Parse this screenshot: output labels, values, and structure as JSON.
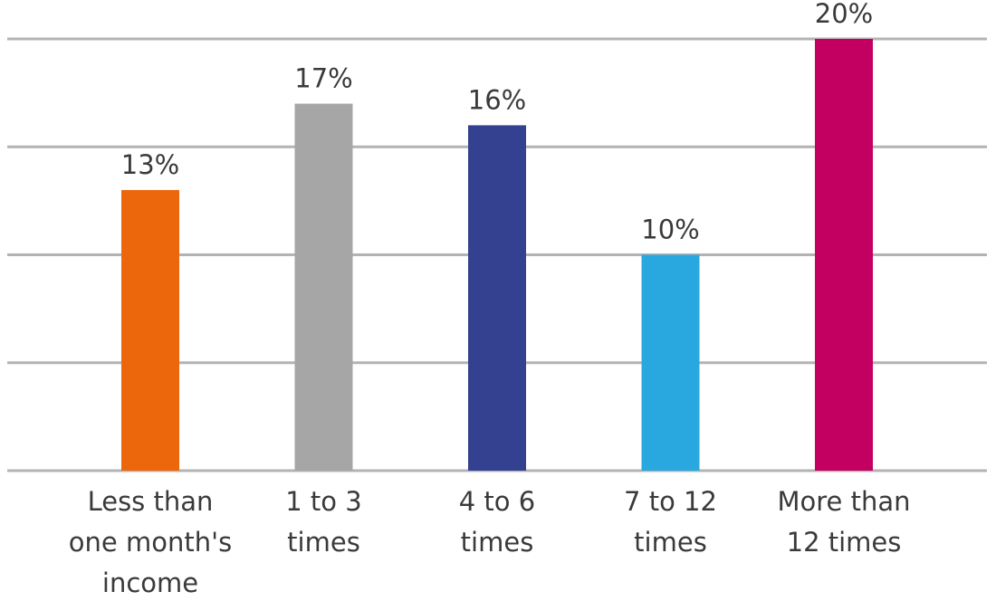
{
  "chart_data": {
    "type": "bar",
    "categories": [
      [
        "Less than",
        "one month's",
        "income"
      ],
      [
        "1 to 3",
        "times"
      ],
      [
        "4 to 6",
        "times"
      ],
      [
        "7 to 12",
        "times"
      ],
      [
        "More than",
        "12 times"
      ]
    ],
    "values": [
      13,
      17,
      16,
      10,
      20
    ],
    "value_labels": [
      "13%",
      "17%",
      "16%",
      "10%",
      "20%"
    ],
    "colors": [
      "#ec670b",
      "#a6a6a6",
      "#344191",
      "#29a8e0",
      "#c30061"
    ],
    "ylim": [
      0,
      20
    ],
    "yticks": [
      0,
      5,
      10,
      15,
      20
    ],
    "grid": true
  }
}
